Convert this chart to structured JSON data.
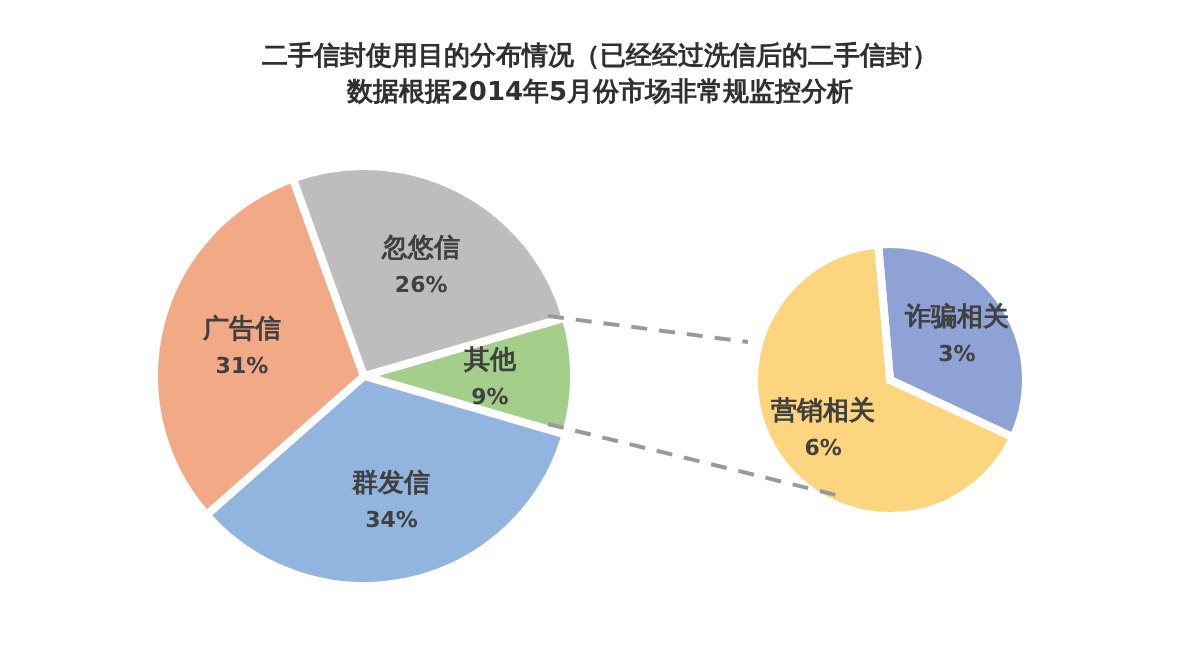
{
  "chart_data": [
    {
      "type": "pie",
      "title": "二手信封使用目的分布情况（已经经过洗信后的二手信封）",
      "subtitle": "数据根据2014年5月份市场非常规监控分析",
      "categories": [
        "其他",
        "群发信",
        "广告信",
        "忽悠信"
      ],
      "values": [
        9,
        34,
        31,
        26
      ],
      "value_labels": [
        "9%",
        "34%",
        "31%",
        "26%"
      ],
      "colors": [
        "#a3cf8a",
        "#92b5e0",
        "#f2a985",
        "#bdbdbd"
      ]
    },
    {
      "type": "pie",
      "categories": [
        "诈骗相关",
        "营销相关"
      ],
      "values": [
        3,
        6
      ],
      "value_labels": [
        "3%",
        "6%"
      ],
      "colors": [
        "#8ea2d6",
        "#fdd57e"
      ]
    }
  ]
}
